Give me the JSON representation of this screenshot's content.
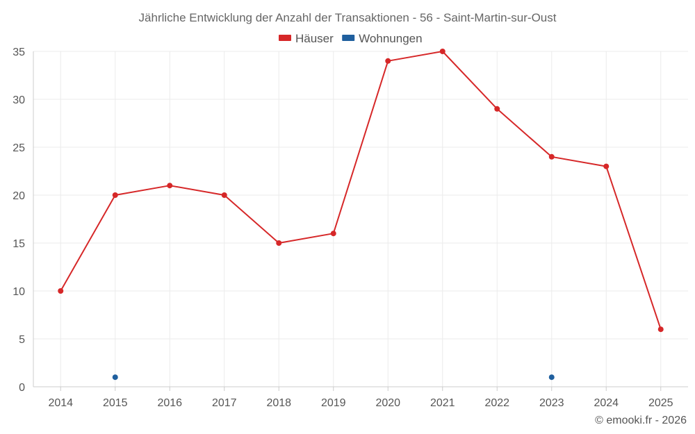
{
  "chart_data": {
    "type": "line",
    "title": "Jährliche Entwicklung der Anzahl der Transaktionen - 56 - Saint-Martin-sur-Oust",
    "categories": [
      "2014",
      "2015",
      "2016",
      "2017",
      "2018",
      "2019",
      "2020",
      "2021",
      "2022",
      "2023",
      "2024",
      "2025"
    ],
    "series": [
      {
        "name": "Häuser",
        "color": "#d62728",
        "values": [
          10,
          20,
          21,
          20,
          15,
          16,
          34,
          35,
          29,
          24,
          23,
          6
        ]
      },
      {
        "name": "Wohnungen",
        "color": "#1f5f9e",
        "values": [
          null,
          1,
          null,
          null,
          null,
          null,
          null,
          null,
          null,
          1,
          null,
          null
        ]
      }
    ],
    "ylim": [
      0,
      35
    ],
    "yticks": [
      0,
      5,
      10,
      15,
      20,
      25,
      30,
      35
    ],
    "grid": true,
    "legend": "top-center",
    "xlabel": "",
    "ylabel": ""
  },
  "footer": {
    "copyright": "© emooki.fr - 2026"
  }
}
